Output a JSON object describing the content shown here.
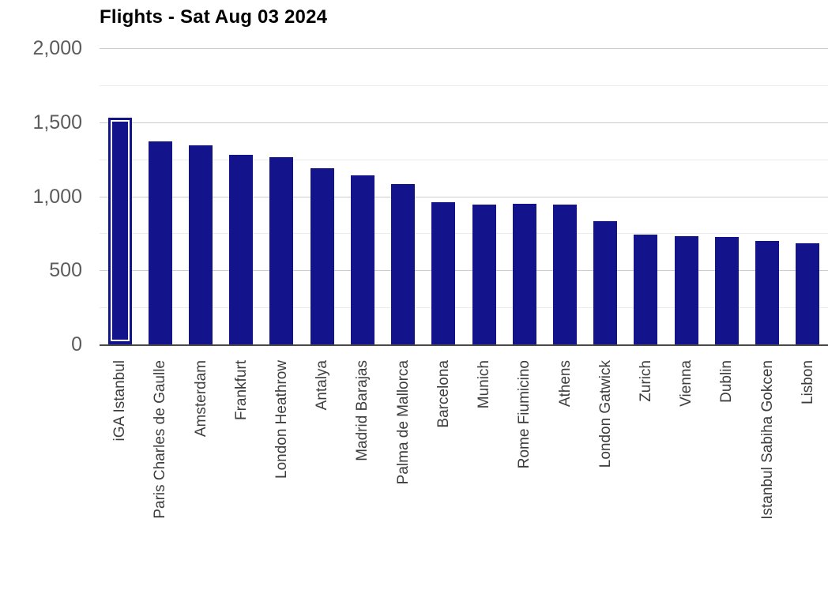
{
  "chart_data": {
    "type": "bar",
    "title": "Flights - Sat Aug 03 2024",
    "categories": [
      "iGA Istanbul",
      "Paris Charles de Gaulle",
      "Amsterdam",
      "Frankfurt",
      "London Heathrow",
      "Antalya",
      "Madrid Barajas",
      "Palma de Mallorca",
      "Barcelona",
      "Munich",
      "Rome Fiumicino",
      "Athens",
      "London Gatwick",
      "Zurich",
      "Vienna",
      "Dublin",
      "Istanbul Sabiha Gokcen",
      "Lisbon"
    ],
    "values": [
      1530,
      1370,
      1345,
      1278,
      1263,
      1190,
      1140,
      1082,
      958,
      945,
      947,
      944,
      830,
      740,
      731,
      723,
      697,
      684
    ],
    "xlabel": "",
    "ylabel": "",
    "ylim": [
      0,
      2000
    ],
    "grid": "on",
    "legend": "none",
    "selected_index": 0,
    "y_axis": {
      "ticks": [
        {
          "value": 2000,
          "label": "2,000"
        },
        {
          "value": 1500,
          "label": "1,500"
        },
        {
          "value": 1000,
          "label": "1,000"
        },
        {
          "value": 500,
          "label": "500"
        },
        {
          "value": 0,
          "label": "0"
        }
      ],
      "minor_gridlines": [
        1750,
        1250,
        750,
        250
      ]
    },
    "colors": {
      "bar": "#13138b",
      "selected_outline": "#ffffff",
      "major_gridline": "#cccccc",
      "minor_gridline": "#ececec",
      "axis_line": "#494949",
      "y_label_text": "#5c5c5c",
      "x_label_text": "#3d3d3d",
      "title_text": "#000000"
    }
  }
}
